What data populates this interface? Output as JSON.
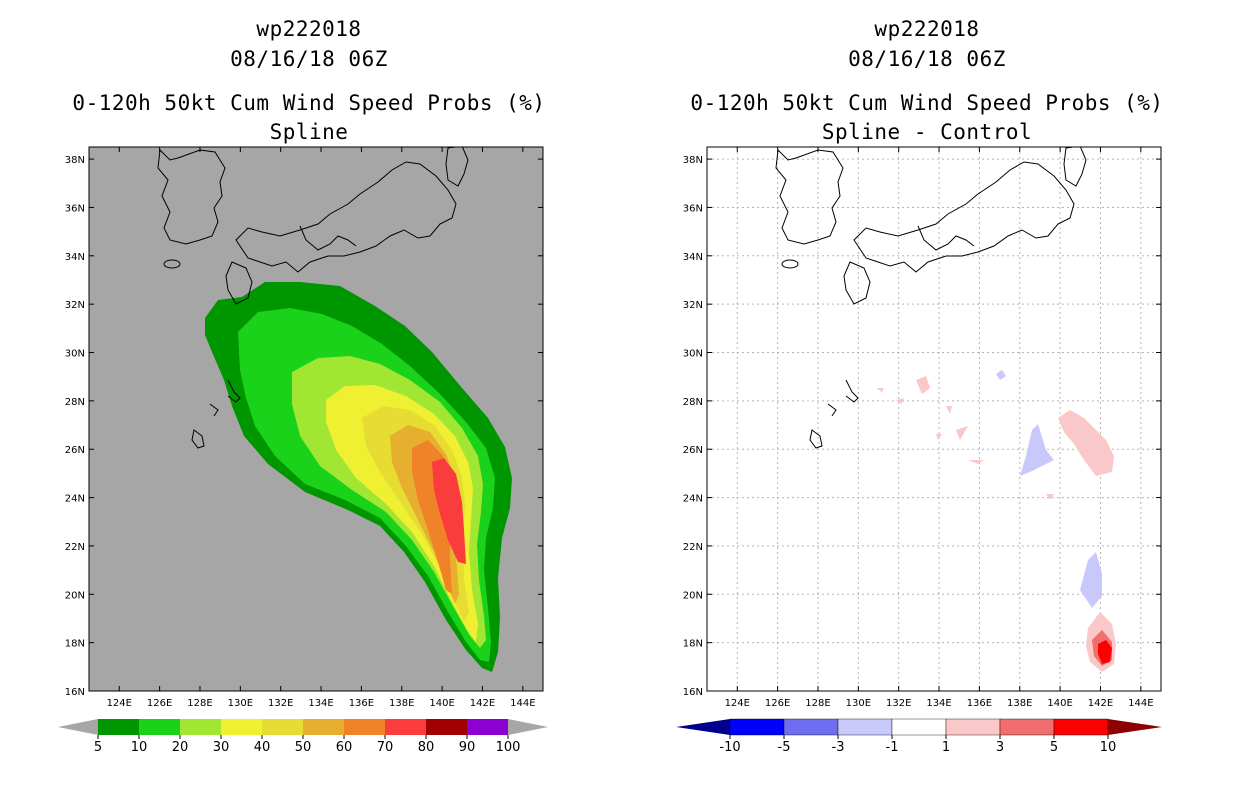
{
  "panels": [
    {
      "storm_id": "wp222018",
      "datetime": "08/16/18 06Z",
      "product": "0-120h 50kt Cum Wind Speed Probs (%)",
      "subtitle": "Spline",
      "background": "#a6a6a6",
      "colorbar": {
        "labels": [
          "5",
          "10",
          "20",
          "30",
          "40",
          "50",
          "60",
          "70",
          "80",
          "90",
          "100"
        ],
        "colors": [
          "#009600",
          "#19d219",
          "#a0e632",
          "#f0f032",
          "#e6dc32",
          "#e6af2d",
          "#f08228",
          "#fa3c3c",
          "#a00000",
          "#8c00d2"
        ]
      }
    },
    {
      "storm_id": "wp222018",
      "datetime": "08/16/18 06Z",
      "product": "0-120h 50kt Cum Wind Speed Probs (%)",
      "subtitle": "Spline - Control",
      "background": "#ffffff",
      "colorbar": {
        "labels": [
          "-10",
          "-5",
          "-3",
          "-1",
          "1",
          "3",
          "5",
          "10"
        ],
        "colors": [
          "#00008c",
          "#0000ff",
          "#6e6ef0",
          "#c8c8fa",
          "#ffffff",
          "#fac8c8",
          "#f06e6e",
          "#ff0000",
          "#8c0000"
        ]
      }
    }
  ],
  "map": {
    "lon_ticks": [
      "124E",
      "126E",
      "128E",
      "130E",
      "132E",
      "134E",
      "136E",
      "138E",
      "140E",
      "142E",
      "144E"
    ],
    "lat_ticks": [
      "38N",
      "36N",
      "34N",
      "32N",
      "30N",
      "28N",
      "26N",
      "24N",
      "22N",
      "20N",
      "18N",
      "16N"
    ],
    "lon_range": [
      122.5,
      145.0
    ],
    "lat_range": [
      16.0,
      38.5
    ]
  }
}
